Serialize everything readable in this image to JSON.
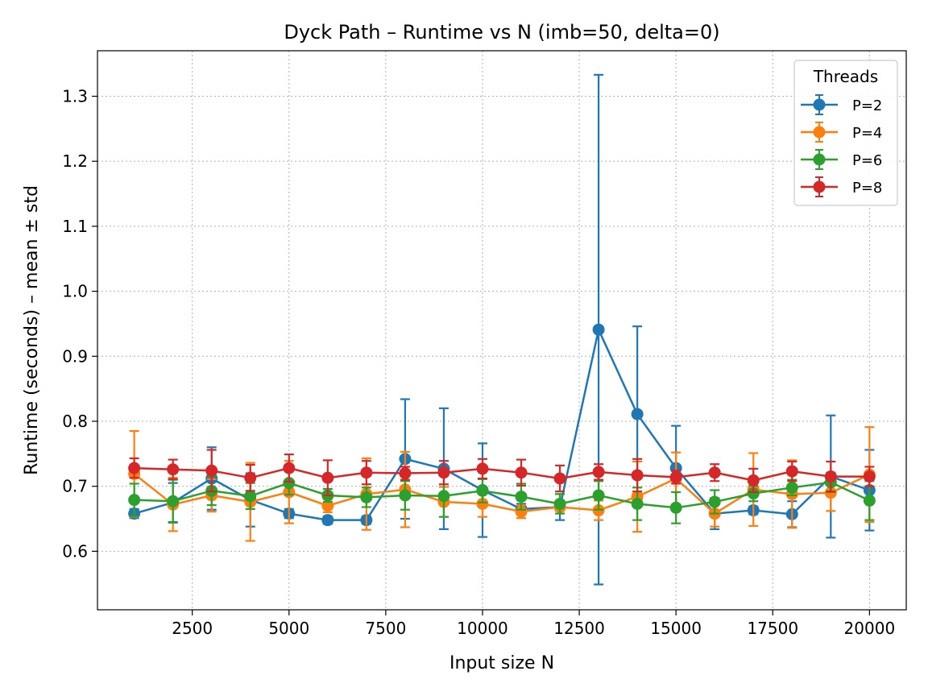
{
  "chart_data": {
    "type": "line",
    "title": "Dyck Path – Runtime vs N (imb=50, delta=0)",
    "xlabel": "Input size N",
    "ylabel": "Runtime (seconds) – mean ± std",
    "xlim": [
      50,
      20950
    ],
    "ylim": [
      0.51,
      1.37
    ],
    "xticks": [
      2500,
      5000,
      7500,
      10000,
      12500,
      15000,
      17500,
      20000
    ],
    "yticks": [
      0.6,
      0.7,
      0.8,
      0.9,
      1.0,
      1.1,
      1.2,
      1.3
    ],
    "xtick_labels": [
      "2500",
      "5000",
      "7500",
      "10000",
      "12500",
      "15000",
      "17500",
      "20000"
    ],
    "ytick_labels": [
      "0.6",
      "0.7",
      "0.8",
      "0.9",
      "1.0",
      "1.1",
      "1.2",
      "1.3"
    ],
    "grid": true,
    "legend_title": "Threads",
    "legend_position": "upper right",
    "x": [
      1000,
      2000,
      3000,
      4000,
      5000,
      6000,
      7000,
      8000,
      9000,
      10000,
      11000,
      12000,
      13000,
      14000,
      15000,
      16000,
      17000,
      18000,
      19000,
      20000
    ],
    "series": [
      {
        "name": "P=2",
        "color": "#1f77b4",
        "values": [
          0.658,
          0.675,
          0.712,
          0.679,
          0.658,
          0.648,
          0.648,
          0.742,
          0.727,
          0.694,
          0.665,
          0.668,
          0.941,
          0.811,
          0.728,
          0.658,
          0.663,
          0.657,
          0.715,
          0.694
        ],
        "std": [
          0.007,
          0.03,
          0.048,
          0.041,
          0.007,
          0.006,
          0.006,
          0.092,
          0.093,
          0.072,
          0.008,
          0.02,
          0.392,
          0.135,
          0.065,
          0.024,
          0.006,
          0.02,
          0.094,
          0.062
        ]
      },
      {
        "name": "P=4",
        "color": "#ff7f0e",
        "values": [
          0.719,
          0.672,
          0.686,
          0.676,
          0.691,
          0.67,
          0.688,
          0.695,
          0.676,
          0.673,
          0.661,
          0.668,
          0.663,
          0.684,
          0.712,
          0.658,
          0.695,
          0.688,
          0.69,
          0.718
        ],
        "std": [
          0.066,
          0.041,
          0.025,
          0.06,
          0.048,
          0.01,
          0.055,
          0.058,
          0.023,
          0.02,
          0.01,
          0.006,
          0.015,
          0.054,
          0.04,
          0.02,
          0.056,
          0.052,
          0.028,
          0.073
        ]
      },
      {
        "name": "P=6",
        "color": "#2ca02c",
        "values": [
          0.679,
          0.677,
          0.693,
          0.685,
          0.705,
          0.686,
          0.683,
          0.686,
          0.685,
          0.693,
          0.684,
          0.673,
          0.686,
          0.673,
          0.667,
          0.676,
          0.689,
          0.698,
          0.706,
          0.678
        ],
        "std": [
          0.025,
          0.033,
          0.022,
          0.02,
          0.018,
          0.01,
          0.015,
          0.022,
          0.032,
          0.018,
          0.02,
          0.015,
          0.022,
          0.025,
          0.024,
          0.018,
          0.012,
          0.012,
          0.015,
          0.03
        ]
      },
      {
        "name": "P=8",
        "color": "#d62728",
        "values": [
          0.728,
          0.726,
          0.724,
          0.713,
          0.728,
          0.713,
          0.721,
          0.72,
          0.721,
          0.727,
          0.721,
          0.712,
          0.722,
          0.717,
          0.714,
          0.721,
          0.709,
          0.723,
          0.715,
          0.715
        ],
        "std": [
          0.015,
          0.015,
          0.032,
          0.02,
          0.021,
          0.027,
          0.018,
          0.01,
          0.018,
          0.015,
          0.02,
          0.02,
          0.012,
          0.025,
          0.01,
          0.013,
          0.018,
          0.015,
          0.023,
          0.015
        ]
      }
    ]
  }
}
